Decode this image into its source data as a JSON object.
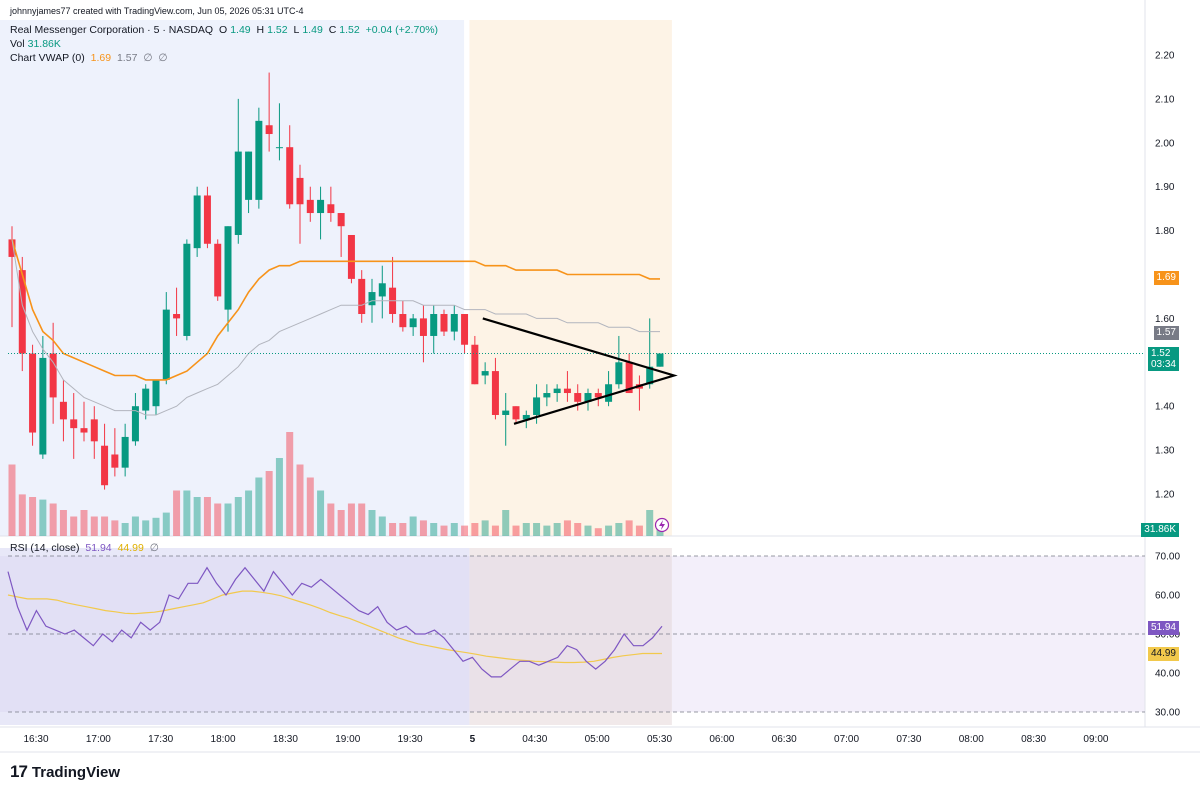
{
  "header": {
    "credit": "johnnyjames77 created with TradingView.com, Jun 05, 2026 05:31 UTC-4",
    "symbol": "Real Messenger Corporation · 5 · NASDAQ",
    "ohlc": {
      "o_label": "O",
      "o": "1.49",
      "h_label": "H",
      "h": "1.52",
      "l_label": "L",
      "l": "1.49",
      "c_label": "C",
      "c": "1.52",
      "change": "+0.04 (+2.70%)"
    },
    "vol_label": "Vol",
    "vol_value": "31.86K",
    "vwap_label": "Chart VWAP (0)",
    "vwap_v1": "1.69",
    "vwap_v2": "1.57",
    "vwap_v3": "∅",
    "vwap_v4": "∅",
    "rsi_label": "RSI (14, close)",
    "rsi_v1": "51.94",
    "rsi_v2": "44.99",
    "rsi_v3": "∅"
  },
  "badges": {
    "vwap": "1.69",
    "band": "1.57",
    "last_price": "1.52",
    "countdown": "03:34",
    "volume": "31.86K",
    "rsi": "51.94",
    "rsi_ma": "44.99"
  },
  "branding": {
    "logo_text": "TradingView"
  },
  "colors": {
    "up": "#089981",
    "down": "#f23645",
    "vwap": "#f7931a",
    "band": "#b2b5be",
    "rsi": "#7e57c2",
    "rsi_ma": "#f2c94c",
    "triangle": "#000000"
  },
  "chart_data": [
    {
      "type": "candlestick",
      "title": "Real Messenger Corporation · 5 · NASDAQ",
      "y_ticks": [
        "2.20",
        "2.10",
        "2.00",
        "1.90",
        "1.80",
        "1.60",
        "1.40",
        "1.30",
        "1.20"
      ],
      "ylim": [
        1.15,
        2.24
      ],
      "x_ticks": [
        "16:30",
        "17:00",
        "17:30",
        "18:00",
        "18:30",
        "19:00",
        "19:30",
        "5",
        "04:30",
        "05:00",
        "05:30",
        "06:00",
        "06:30",
        "07:00",
        "07:30",
        "08:00",
        "08:30",
        "09:00"
      ],
      "sessions": [
        {
          "name": "post-market",
          "range": [
            "16:05",
            "19:55"
          ],
          "color": "#eef2fc"
        },
        {
          "name": "pre-market",
          "range": [
            "04:00",
            "05:35"
          ],
          "color": "#fdf3e6"
        }
      ],
      "candles": [
        {
          "o": 1.78,
          "h": 1.81,
          "l": 1.58,
          "c": 1.74
        },
        {
          "o": 1.71,
          "h": 1.74,
          "l": 1.48,
          "c": 1.52
        },
        {
          "o": 1.52,
          "h": 1.54,
          "l": 1.31,
          "c": 1.34
        },
        {
          "o": 1.29,
          "h": 1.56,
          "l": 1.28,
          "c": 1.51
        },
        {
          "o": 1.52,
          "h": 1.59,
          "l": 1.36,
          "c": 1.42
        },
        {
          "o": 1.41,
          "h": 1.46,
          "l": 1.32,
          "c": 1.37
        },
        {
          "o": 1.37,
          "h": 1.43,
          "l": 1.28,
          "c": 1.35
        },
        {
          "o": 1.35,
          "h": 1.41,
          "l": 1.32,
          "c": 1.34
        },
        {
          "o": 1.37,
          "h": 1.4,
          "l": 1.28,
          "c": 1.32
        },
        {
          "o": 1.31,
          "h": 1.36,
          "l": 1.21,
          "c": 1.22
        },
        {
          "o": 1.29,
          "h": 1.35,
          "l": 1.24,
          "c": 1.26
        },
        {
          "o": 1.26,
          "h": 1.36,
          "l": 1.24,
          "c": 1.33
        },
        {
          "o": 1.32,
          "h": 1.43,
          "l": 1.31,
          "c": 1.4
        },
        {
          "o": 1.39,
          "h": 1.45,
          "l": 1.37,
          "c": 1.44
        },
        {
          "o": 1.4,
          "h": 1.46,
          "l": 1.38,
          "c": 1.46
        },
        {
          "o": 1.46,
          "h": 1.66,
          "l": 1.45,
          "c": 1.62
        },
        {
          "o": 1.61,
          "h": 1.67,
          "l": 1.56,
          "c": 1.6
        },
        {
          "o": 1.56,
          "h": 1.78,
          "l": 1.55,
          "c": 1.77
        },
        {
          "o": 1.76,
          "h": 1.9,
          "l": 1.74,
          "c": 1.88
        },
        {
          "o": 1.88,
          "h": 1.9,
          "l": 1.76,
          "c": 1.77
        },
        {
          "o": 1.77,
          "h": 1.78,
          "l": 1.64,
          "c": 1.65
        },
        {
          "o": 1.62,
          "h": 1.81,
          "l": 1.57,
          "c": 1.81
        },
        {
          "o": 1.79,
          "h": 2.1,
          "l": 1.77,
          "c": 1.98
        },
        {
          "o": 1.87,
          "h": 1.98,
          "l": 1.84,
          "c": 1.98
        },
        {
          "o": 1.87,
          "h": 2.08,
          "l": 1.85,
          "c": 2.05
        },
        {
          "o": 2.04,
          "h": 2.16,
          "l": 1.98,
          "c": 2.02
        },
        {
          "o": 1.99,
          "h": 2.09,
          "l": 1.96,
          "c": 1.99
        },
        {
          "o": 1.99,
          "h": 2.04,
          "l": 1.85,
          "c": 1.86
        },
        {
          "o": 1.92,
          "h": 1.95,
          "l": 1.77,
          "c": 1.86
        },
        {
          "o": 1.87,
          "h": 1.9,
          "l": 1.82,
          "c": 1.84
        },
        {
          "o": 1.84,
          "h": 1.9,
          "l": 1.78,
          "c": 1.87
        },
        {
          "o": 1.86,
          "h": 1.9,
          "l": 1.82,
          "c": 1.84
        },
        {
          "o": 1.84,
          "h": 1.84,
          "l": 1.74,
          "c": 1.81
        },
        {
          "o": 1.79,
          "h": 1.79,
          "l": 1.68,
          "c": 1.69
        },
        {
          "o": 1.69,
          "h": 1.71,
          "l": 1.59,
          "c": 1.61
        },
        {
          "o": 1.63,
          "h": 1.69,
          "l": 1.59,
          "c": 1.66
        },
        {
          "o": 1.65,
          "h": 1.72,
          "l": 1.6,
          "c": 1.68
        },
        {
          "o": 1.67,
          "h": 1.74,
          "l": 1.59,
          "c": 1.61
        },
        {
          "o": 1.61,
          "h": 1.64,
          "l": 1.57,
          "c": 1.58
        },
        {
          "o": 1.58,
          "h": 1.61,
          "l": 1.56,
          "c": 1.6
        },
        {
          "o": 1.6,
          "h": 1.63,
          "l": 1.5,
          "c": 1.56
        },
        {
          "o": 1.56,
          "h": 1.63,
          "l": 1.52,
          "c": 1.61
        },
        {
          "o": 1.61,
          "h": 1.62,
          "l": 1.56,
          "c": 1.57
        },
        {
          "o": 1.57,
          "h": 1.63,
          "l": 1.55,
          "c": 1.61
        },
        {
          "o": 1.61,
          "h": 1.61,
          "l": 1.52,
          "c": 1.54
        },
        {
          "o": 1.54,
          "h": 1.56,
          "l": 1.45,
          "c": 1.45
        },
        {
          "o": 1.47,
          "h": 1.5,
          "l": 1.45,
          "c": 1.48
        },
        {
          "o": 1.48,
          "h": 1.51,
          "l": 1.37,
          "c": 1.38
        },
        {
          "o": 1.38,
          "h": 1.43,
          "l": 1.31,
          "c": 1.39
        },
        {
          "o": 1.4,
          "h": 1.4,
          "l": 1.36,
          "c": 1.37
        },
        {
          "o": 1.37,
          "h": 1.39,
          "l": 1.35,
          "c": 1.38
        },
        {
          "o": 1.38,
          "h": 1.45,
          "l": 1.36,
          "c": 1.42
        },
        {
          "o": 1.42,
          "h": 1.45,
          "l": 1.4,
          "c": 1.43
        },
        {
          "o": 1.43,
          "h": 1.45,
          "l": 1.41,
          "c": 1.44
        },
        {
          "o": 1.44,
          "h": 1.48,
          "l": 1.41,
          "c": 1.43
        },
        {
          "o": 1.43,
          "h": 1.45,
          "l": 1.39,
          "c": 1.41
        },
        {
          "o": 1.41,
          "h": 1.44,
          "l": 1.39,
          "c": 1.43
        },
        {
          "o": 1.43,
          "h": 1.44,
          "l": 1.4,
          "c": 1.42
        },
        {
          "o": 1.41,
          "h": 1.48,
          "l": 1.4,
          "c": 1.45
        },
        {
          "o": 1.45,
          "h": 1.56,
          "l": 1.44,
          "c": 1.5
        },
        {
          "o": 1.5,
          "h": 1.52,
          "l": 1.43,
          "c": 1.43
        },
        {
          "o": 1.45,
          "h": 1.47,
          "l": 1.39,
          "c": 1.44
        },
        {
          "o": 1.45,
          "h": 1.6,
          "l": 1.44,
          "c": 1.49
        },
        {
          "o": 1.49,
          "h": 1.52,
          "l": 1.49,
          "c": 1.52
        }
      ],
      "volume_relative": [
        0.55,
        0.32,
        0.3,
        0.28,
        0.25,
        0.2,
        0.15,
        0.2,
        0.15,
        0.15,
        0.12,
        0.1,
        0.15,
        0.12,
        0.14,
        0.18,
        0.35,
        0.35,
        0.3,
        0.3,
        0.25,
        0.25,
        0.3,
        0.35,
        0.45,
        0.5,
        0.6,
        0.8,
        0.55,
        0.45,
        0.35,
        0.25,
        0.2,
        0.25,
        0.25,
        0.2,
        0.15,
        0.1,
        0.1,
        0.15,
        0.12,
        0.1,
        0.08,
        0.1,
        0.08,
        0.1,
        0.12,
        0.08,
        0.2,
        0.08,
        0.1,
        0.1,
        0.08,
        0.1,
        0.12,
        0.1,
        0.08,
        0.06,
        0.08,
        0.1,
        0.12,
        0.08,
        0.2,
        0.1
      ],
      "vwap_series": [
        {
          "name": "Chart VWAP (0)",
          "values": [
            1.78,
            1.7,
            1.62,
            1.57,
            1.55,
            1.52,
            1.51,
            1.5,
            1.49,
            1.48,
            1.47,
            1.47,
            1.47,
            1.46,
            1.46,
            1.46,
            1.47,
            1.48,
            1.5,
            1.52,
            1.56,
            1.59,
            1.62,
            1.66,
            1.69,
            1.71,
            1.72,
            1.72,
            1.73,
            1.73,
            1.73,
            1.73,
            1.73,
            1.73,
            1.73,
            1.73,
            1.73,
            1.73,
            1.73,
            1.73,
            1.73,
            1.73,
            1.73,
            1.73,
            1.73,
            1.73,
            1.72,
            1.72,
            1.72,
            1.71,
            1.71,
            1.71,
            1.71,
            1.71,
            1.7,
            1.7,
            1.7,
            1.7,
            1.7,
            1.7,
            1.7,
            1.7,
            1.69,
            1.69
          ]
        },
        {
          "name": "band",
          "values": [
            1.78,
            1.63,
            1.57,
            1.53,
            1.5,
            1.46,
            1.44,
            1.42,
            1.41,
            1.4,
            1.39,
            1.39,
            1.39,
            1.38,
            1.38,
            1.39,
            1.4,
            1.42,
            1.43,
            1.44,
            1.45,
            1.47,
            1.49,
            1.52,
            1.54,
            1.55,
            1.57,
            1.58,
            1.59,
            1.6,
            1.61,
            1.62,
            1.63,
            1.63,
            1.63,
            1.64,
            1.64,
            1.64,
            1.64,
            1.64,
            1.63,
            1.63,
            1.63,
            1.63,
            1.62,
            1.62,
            1.62,
            1.61,
            1.61,
            1.61,
            1.61,
            1.6,
            1.6,
            1.6,
            1.59,
            1.59,
            1.59,
            1.59,
            1.58,
            1.58,
            1.58,
            1.57,
            1.57,
            1.57
          ]
        }
      ],
      "annotations": [
        {
          "type": "symmetrical-triangle",
          "points": [
            {
              "time": "04:05",
              "price": 1.6
            },
            {
              "time": "05:37",
              "price": 1.47
            },
            {
              "time": "04:20",
              "price": 1.36
            }
          ]
        }
      ]
    },
    {
      "type": "line",
      "title": "RSI (14, close)",
      "y_ticks": [
        "70.00",
        "60.00",
        "50.00",
        "40.00",
        "30.00"
      ],
      "ylim": [
        28,
        72
      ],
      "levels": [
        70,
        50,
        30
      ],
      "series": [
        {
          "name": "RSI",
          "values": [
            66,
            57,
            51,
            56,
            52,
            51,
            50,
            51,
            49,
            47,
            50,
            48,
            51,
            49,
            53,
            51,
            53,
            60,
            59,
            63,
            63,
            67,
            63,
            60,
            64,
            67,
            64,
            61,
            66,
            63,
            60,
            63,
            62,
            64,
            62,
            60,
            58,
            56,
            55,
            57,
            53,
            51,
            52,
            50,
            50,
            51,
            49,
            46,
            43,
            44,
            41,
            39,
            39,
            41,
            43,
            43,
            42,
            43,
            44,
            47,
            46,
            43,
            41,
            43,
            46,
            50,
            47,
            47,
            49,
            52
          ]
        },
        {
          "name": "MA",
          "values": [
            60,
            59.5,
            59,
            59,
            59,
            58.7,
            58,
            57.5,
            57,
            56.5,
            56,
            55.7,
            55.3,
            55.2,
            55.4,
            55.6,
            56,
            56.5,
            57,
            57.5,
            58,
            59,
            60,
            60.5,
            61,
            61,
            60.7,
            60.3,
            59.8,
            59,
            58.2,
            57.4,
            56.5,
            55.5,
            54.7,
            54,
            53,
            52,
            51,
            50,
            49,
            48.2,
            47.5,
            47,
            46.5,
            46,
            45.6,
            45.2,
            44.8,
            44.3,
            44,
            43.7,
            43.4,
            43.2,
            43,
            42.9,
            42.8,
            42.7,
            42.7,
            42.8,
            43,
            43.5,
            44,
            44.4,
            44.7,
            45,
            45,
            45
          ]
        }
      ]
    }
  ]
}
